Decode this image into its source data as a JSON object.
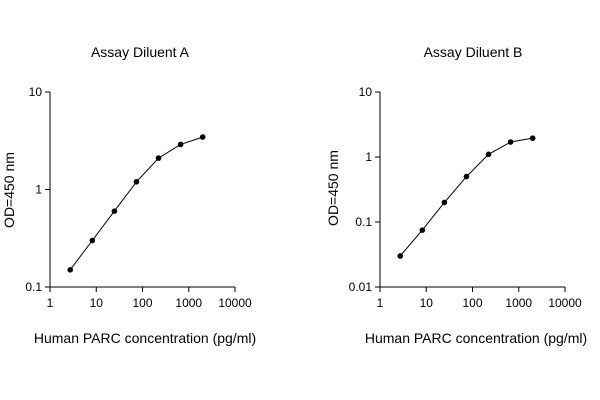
{
  "chart_data": [
    {
      "type": "line",
      "title": "Assay Diluent A",
      "xlabel": "Human PARC concentration (pg/ml)",
      "ylabel": "OD=450 nm",
      "xscale": "log",
      "yscale": "log",
      "xlim": [
        1,
        10000
      ],
      "ylim": [
        0.1,
        10
      ],
      "xticks": [
        1,
        10,
        100,
        1000,
        10000
      ],
      "xtick_labels": [
        "1",
        "10",
        "100",
        "1000",
        "10000"
      ],
      "yticks": [
        0.1,
        1,
        10
      ],
      "ytick_labels": [
        "0.1",
        "1",
        "10"
      ],
      "grid": false,
      "markers": true,
      "series": [
        {
          "x": [
            2.74,
            8.23,
            24.7,
            74.1,
            222,
            667,
            2000
          ],
          "y": [
            0.15,
            0.3,
            0.6,
            1.2,
            2.1,
            2.9,
            3.45
          ]
        }
      ]
    },
    {
      "type": "line",
      "title": "Assay Diluent B",
      "xlabel": "Human PARC concentration (pg/ml)",
      "ylabel": "OD=450 nm",
      "xscale": "log",
      "yscale": "log",
      "xlim": [
        1,
        10000
      ],
      "ylim": [
        0.01,
        10
      ],
      "xticks": [
        1,
        10,
        100,
        1000,
        10000
      ],
      "xtick_labels": [
        "1",
        "10",
        "100",
        "1000",
        "10000"
      ],
      "yticks": [
        0.01,
        0.1,
        1,
        10
      ],
      "ytick_labels": [
        "0.01",
        "0.1",
        "1",
        "10"
      ],
      "grid": false,
      "markers": true,
      "series": [
        {
          "x": [
            2.74,
            8.23,
            24.7,
            74.1,
            222,
            667,
            2000
          ],
          "y": [
            0.03,
            0.075,
            0.2,
            0.5,
            1.1,
            1.7,
            1.95
          ]
        }
      ]
    }
  ]
}
